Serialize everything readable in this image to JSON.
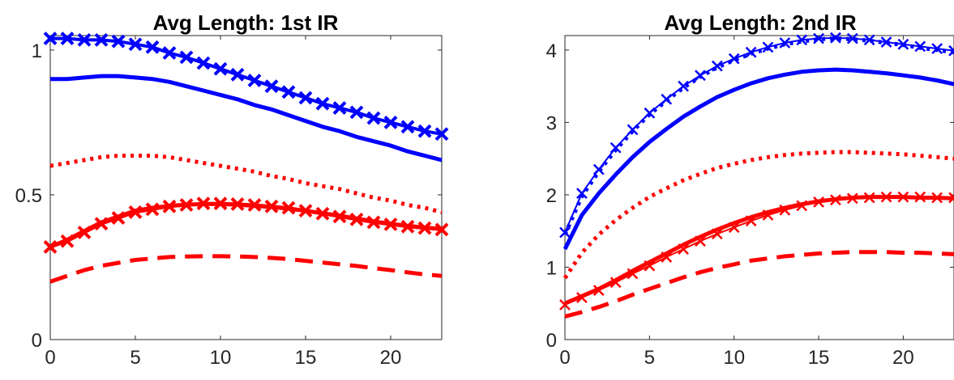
{
  "chart_data": [
    {
      "type": "line",
      "title": "Avg Length: 1st IR",
      "xlabel": "",
      "ylabel": "",
      "xlim": [
        0,
        23
      ],
      "ylim": [
        0,
        1.05
      ],
      "xticks": [
        0,
        5,
        10,
        15,
        20
      ],
      "yticks": [
        0,
        0.5,
        1
      ],
      "ytick_labels": [
        "0",
        "0.5",
        "1"
      ],
      "grid": false,
      "series": [
        {
          "color": "#0000ff",
          "style": "x-marker-line",
          "x": [
            0,
            1,
            2,
            3,
            4,
            5,
            6,
            7,
            8,
            9,
            10,
            11,
            12,
            13,
            14,
            15,
            16,
            17,
            18,
            19,
            20,
            21,
            22,
            23
          ],
          "values": [
            1.04,
            1.04,
            1.035,
            1.035,
            1.03,
            1.02,
            1.01,
            0.99,
            0.975,
            0.955,
            0.935,
            0.915,
            0.895,
            0.875,
            0.855,
            0.835,
            0.815,
            0.8,
            0.785,
            0.765,
            0.75,
            0.735,
            0.72,
            0.71
          ]
        },
        {
          "color": "#0000ff",
          "style": "solid",
          "x": [
            0,
            1,
            2,
            3,
            4,
            5,
            6,
            7,
            8,
            9,
            10,
            11,
            12,
            13,
            14,
            15,
            16,
            17,
            18,
            19,
            20,
            21,
            22,
            23
          ],
          "values": [
            0.9,
            0.9,
            0.905,
            0.91,
            0.91,
            0.905,
            0.9,
            0.89,
            0.875,
            0.86,
            0.845,
            0.83,
            0.81,
            0.795,
            0.775,
            0.755,
            0.735,
            0.72,
            0.7,
            0.685,
            0.67,
            0.65,
            0.635,
            0.62
          ]
        },
        {
          "color": "#ff0000",
          "style": "dotted",
          "x": [
            0,
            1,
            2,
            3,
            4,
            5,
            6,
            7,
            8,
            9,
            10,
            11,
            12,
            13,
            14,
            15,
            16,
            17,
            18,
            19,
            20,
            21,
            22,
            23
          ],
          "values": [
            0.6,
            0.61,
            0.62,
            0.63,
            0.635,
            0.635,
            0.635,
            0.63,
            0.62,
            0.61,
            0.6,
            0.59,
            0.58,
            0.565,
            0.555,
            0.54,
            0.53,
            0.52,
            0.505,
            0.49,
            0.48,
            0.465,
            0.455,
            0.44
          ]
        },
        {
          "color": "#ff0000",
          "style": "x-marker-line",
          "x": [
            0,
            1,
            2,
            3,
            4,
            5,
            6,
            7,
            8,
            9,
            10,
            11,
            12,
            13,
            14,
            15,
            16,
            17,
            18,
            19,
            20,
            21,
            22,
            23
          ],
          "values": [
            0.32,
            0.34,
            0.37,
            0.4,
            0.42,
            0.44,
            0.45,
            0.46,
            0.465,
            0.47,
            0.47,
            0.468,
            0.465,
            0.46,
            0.455,
            0.445,
            0.435,
            0.425,
            0.415,
            0.405,
            0.398,
            0.39,
            0.385,
            0.38
          ]
        },
        {
          "color": "#ff0000",
          "style": "solid",
          "x": [
            0,
            1,
            2,
            3,
            4,
            5,
            6,
            7,
            8,
            9,
            10,
            11,
            12,
            13,
            14,
            15,
            16,
            17,
            18,
            19,
            20,
            21,
            22,
            23
          ],
          "values": [
            0.32,
            0.345,
            0.375,
            0.405,
            0.425,
            0.445,
            0.455,
            0.462,
            0.466,
            0.468,
            0.468,
            0.466,
            0.462,
            0.458,
            0.452,
            0.445,
            0.436,
            0.428,
            0.418,
            0.408,
            0.4,
            0.393,
            0.387,
            0.382
          ]
        },
        {
          "color": "#ff0000",
          "style": "dashed",
          "x": [
            0,
            1,
            2,
            3,
            4,
            5,
            6,
            7,
            8,
            9,
            10,
            11,
            12,
            13,
            14,
            15,
            16,
            17,
            18,
            19,
            20,
            21,
            22,
            23
          ],
          "values": [
            0.2,
            0.22,
            0.24,
            0.255,
            0.265,
            0.275,
            0.28,
            0.285,
            0.287,
            0.288,
            0.288,
            0.287,
            0.285,
            0.282,
            0.278,
            0.272,
            0.266,
            0.26,
            0.254,
            0.247,
            0.24,
            0.232,
            0.225,
            0.22
          ]
        }
      ]
    },
    {
      "type": "line",
      "title": "Avg Length: 2nd IR",
      "xlabel": "",
      "ylabel": "",
      "xlim": [
        0,
        23
      ],
      "ylim": [
        0,
        4.2
      ],
      "xticks": [
        0,
        5,
        10,
        15,
        20
      ],
      "yticks": [
        0,
        1,
        2,
        3,
        4
      ],
      "ytick_labels": [
        "0",
        "1",
        "2",
        "3",
        "4"
      ],
      "grid": false,
      "series": [
        {
          "color": "#0000ff",
          "style": "x-marker-line",
          "x": [
            0,
            1,
            2,
            3,
            4,
            5,
            6,
            7,
            8,
            9,
            10,
            11,
            12,
            13,
            14,
            15,
            16,
            17,
            18,
            19,
            20,
            21,
            22,
            23
          ],
          "values": [
            1.48,
            2.02,
            2.35,
            2.65,
            2.9,
            3.13,
            3.32,
            3.5,
            3.65,
            3.78,
            3.88,
            3.97,
            4.04,
            4.1,
            4.14,
            4.16,
            4.17,
            4.16,
            4.14,
            4.11,
            4.08,
            4.05,
            4.02,
            3.99
          ]
        },
        {
          "color": "#0000ff",
          "style": "dotted",
          "x": [
            0,
            1,
            2,
            3,
            4,
            5,
            6,
            7,
            8,
            9,
            10,
            11,
            12,
            13,
            14,
            15,
            16,
            17,
            18,
            19,
            20,
            21,
            22,
            23
          ],
          "values": [
            1.45,
            1.98,
            2.32,
            2.62,
            2.88,
            3.11,
            3.3,
            3.48,
            3.63,
            3.76,
            3.86,
            3.95,
            4.02,
            4.08,
            4.12,
            4.15,
            4.16,
            4.15,
            4.13,
            4.1,
            4.07,
            4.03,
            4.0,
            3.97
          ]
        },
        {
          "color": "#0000ff",
          "style": "solid",
          "x": [
            0,
            1,
            2,
            3,
            4,
            5,
            6,
            7,
            8,
            9,
            10,
            11,
            12,
            13,
            14,
            15,
            16,
            17,
            18,
            19,
            20,
            21,
            22,
            23
          ],
          "values": [
            1.25,
            1.72,
            2.02,
            2.28,
            2.52,
            2.73,
            2.91,
            3.08,
            3.22,
            3.35,
            3.45,
            3.54,
            3.61,
            3.66,
            3.7,
            3.72,
            3.73,
            3.72,
            3.7,
            3.68,
            3.65,
            3.62,
            3.58,
            3.53
          ]
        },
        {
          "color": "#ff0000",
          "style": "dotted",
          "x": [
            0,
            1,
            2,
            3,
            4,
            5,
            6,
            7,
            8,
            9,
            10,
            11,
            12,
            13,
            14,
            15,
            16,
            17,
            18,
            19,
            20,
            21,
            22,
            23
          ],
          "values": [
            0.85,
            1.2,
            1.45,
            1.65,
            1.82,
            1.97,
            2.09,
            2.2,
            2.29,
            2.37,
            2.43,
            2.48,
            2.52,
            2.55,
            2.57,
            2.58,
            2.59,
            2.59,
            2.58,
            2.57,
            2.56,
            2.54,
            2.52,
            2.5
          ]
        },
        {
          "color": "#ff0000",
          "style": "solid",
          "x": [
            0,
            1,
            2,
            3,
            4,
            5,
            6,
            7,
            8,
            9,
            10,
            11,
            12,
            13,
            14,
            15,
            16,
            17,
            18,
            19,
            20,
            21,
            22,
            23
          ],
          "values": [
            0.5,
            0.6,
            0.7,
            0.82,
            0.95,
            1.07,
            1.19,
            1.31,
            1.42,
            1.52,
            1.61,
            1.69,
            1.76,
            1.82,
            1.87,
            1.91,
            1.94,
            1.96,
            1.97,
            1.97,
            1.97,
            1.96,
            1.96,
            1.95
          ]
        },
        {
          "color": "#ff0000",
          "style": "x-marker-line",
          "x": [
            0,
            1,
            2,
            3,
            4,
            5,
            6,
            7,
            8,
            9,
            10,
            11,
            12,
            13,
            14,
            15,
            16,
            17,
            18,
            19,
            20,
            21,
            22,
            23
          ],
          "values": [
            0.48,
            0.58,
            0.68,
            0.79,
            0.91,
            1.02,
            1.14,
            1.25,
            1.36,
            1.46,
            1.55,
            1.64,
            1.72,
            1.79,
            1.85,
            1.9,
            1.93,
            1.95,
            1.96,
            1.97,
            1.97,
            1.97,
            1.96,
            1.96
          ]
        },
        {
          "color": "#ff0000",
          "style": "dashed",
          "x": [
            0,
            1,
            2,
            3,
            4,
            5,
            6,
            7,
            8,
            9,
            10,
            11,
            12,
            13,
            14,
            15,
            16,
            17,
            18,
            19,
            20,
            21,
            22,
            23
          ],
          "values": [
            0.32,
            0.38,
            0.45,
            0.53,
            0.62,
            0.7,
            0.78,
            0.86,
            0.93,
            0.99,
            1.04,
            1.09,
            1.12,
            1.15,
            1.17,
            1.19,
            1.2,
            1.21,
            1.21,
            1.21,
            1.2,
            1.2,
            1.19,
            1.18
          ]
        }
      ]
    }
  ]
}
